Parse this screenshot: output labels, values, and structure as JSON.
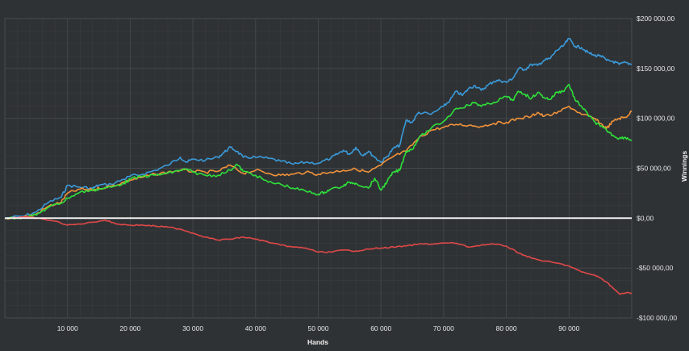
{
  "chart_data": {
    "type": "line",
    "title": "",
    "xlabel": "Hands",
    "ylabel": "Winnings",
    "xlim": [
      0,
      100000
    ],
    "ylim": [
      -100000,
      200000
    ],
    "x_ticks": [
      10000,
      20000,
      30000,
      40000,
      50000,
      60000,
      70000,
      80000,
      90000
    ],
    "x_tick_labels": [
      "10 000",
      "20 000",
      "30 000",
      "40 000",
      "50 000",
      "60 000",
      "70 000",
      "80 000",
      "90 000"
    ],
    "y_ticks": [
      200000,
      150000,
      100000,
      50000,
      0,
      -50000,
      -100000
    ],
    "y_tick_labels": [
      "$200 000,00",
      "$150 000,00",
      "$100 000,00",
      "$50 000,00",
      "$0,00",
      "-$50 000,00",
      "-$100 000,00"
    ],
    "y_axis_side": "right",
    "grid": true,
    "zero_line": true,
    "colors": {
      "background": "#2f3235",
      "grid": "#474b4f",
      "zero_line": "#ffffff",
      "blue": "#3a9ad9",
      "orange": "#f0923a",
      "green": "#2ee03a",
      "red": "#e04848"
    },
    "series": [
      {
        "color": "#3a9ad9",
        "x": [
          0,
          3000,
          5000,
          7000,
          9000,
          10000,
          12000,
          14000,
          15000,
          17000,
          19000,
          20000,
          22000,
          24000,
          26000,
          28000,
          29000,
          30000,
          32000,
          34000,
          35000,
          36000,
          37000,
          38000,
          40000,
          42000,
          44000,
          46000,
          48000,
          50000,
          52000,
          53000,
          54000,
          55000,
          56000,
          57000,
          58000,
          59000,
          60000,
          61000,
          62000,
          63000,
          64000,
          65000,
          66000,
          68000,
          70000,
          71000,
          72000,
          73000,
          74000,
          75000,
          76000,
          77000,
          78000,
          79000,
          80000,
          81000,
          82000,
          83000,
          84000,
          85000,
          86000,
          87000,
          88000,
          89000,
          90000,
          91000,
          92000,
          93000,
          94000,
          95000,
          96000,
          97000,
          98000,
          99000,
          100000
        ],
        "values": [
          0,
          2000,
          6000,
          16000,
          21000,
          33000,
          31000,
          30000,
          33000,
          34000,
          39000,
          42000,
          44000,
          48000,
          53000,
          61000,
          56000,
          59000,
          58000,
          61000,
          66000,
          71000,
          67000,
          61000,
          61000,
          60000,
          57000,
          54000,
          56000,
          55000,
          60000,
          64000,
          68000,
          64000,
          71000,
          63000,
          67000,
          61000,
          56000,
          62000,
          70000,
          73000,
          98000,
          96000,
          106000,
          104000,
          112000,
          118000,
          127000,
          123000,
          130000,
          133000,
          128000,
          133000,
          137000,
          138000,
          136000,
          140000,
          150000,
          149000,
          154000,
          153000,
          158000,
          160000,
          168000,
          172000,
          180000,
          172000,
          171000,
          166000,
          163000,
          163000,
          158000,
          157000,
          154000,
          156000,
          154000
        ]
      },
      {
        "color": "#f0923a",
        "x": [
          0,
          3000,
          5000,
          7000,
          9000,
          10000,
          12000,
          14000,
          15000,
          17000,
          19000,
          20000,
          22000,
          24000,
          26000,
          28000,
          30000,
          32000,
          34000,
          36000,
          38000,
          40000,
          42000,
          44000,
          46000,
          48000,
          50000,
          52000,
          54000,
          56000,
          58000,
          60000,
          62000,
          64000,
          66000,
          68000,
          70000,
          72000,
          74000,
          76000,
          78000,
          80000,
          82000,
          84000,
          85000,
          86000,
          88000,
          90000,
          92000,
          94000,
          95000,
          96000,
          97000,
          98000,
          99000,
          100000
        ],
        "values": [
          0,
          1000,
          4000,
          12000,
          16000,
          25000,
          29000,
          28000,
          30000,
          32000,
          36000,
          38000,
          41000,
          44000,
          46000,
          48000,
          47000,
          46000,
          47000,
          53000,
          45000,
          48000,
          45000,
          43000,
          44000,
          46000,
          44000,
          46000,
          48000,
          49000,
          46000,
          53000,
          62000,
          67000,
          80000,
          88000,
          91000,
          94000,
          93000,
          92000,
          95000,
          96000,
          100000,
          102000,
          106000,
          102000,
          105000,
          112000,
          104000,
          100000,
          95000,
          90000,
          97000,
          100000,
          101000,
          107000
        ]
      },
      {
        "color": "#2ee03a",
        "x": [
          0,
          3000,
          5000,
          7000,
          9000,
          10000,
          12000,
          14000,
          15000,
          17000,
          19000,
          20000,
          22000,
          24000,
          26000,
          28000,
          29000,
          30000,
          32000,
          34000,
          36000,
          37000,
          38000,
          40000,
          42000,
          44000,
          46000,
          48000,
          50000,
          51000,
          52000,
          54000,
          55000,
          56000,
          58000,
          59000,
          60000,
          61000,
          62000,
          63000,
          64000,
          65000,
          66000,
          68000,
          70000,
          72000,
          74000,
          75000,
          76000,
          78000,
          80000,
          81000,
          82000,
          83000,
          84000,
          85000,
          86000,
          87000,
          88000,
          89000,
          90000,
          91000,
          92000,
          93000,
          94000,
          95000,
          96000,
          97000,
          98000,
          99000,
          100000
        ],
        "values": [
          0,
          1000,
          3000,
          11000,
          15000,
          20000,
          26000,
          28000,
          29000,
          31000,
          35000,
          39000,
          42000,
          43000,
          45000,
          48000,
          49000,
          46000,
          43000,
          43000,
          48000,
          54000,
          47000,
          43000,
          36000,
          34000,
          30000,
          27000,
          24000,
          26000,
          29000,
          32000,
          36000,
          35000,
          30000,
          40000,
          28000,
          37000,
          46000,
          48000,
          67000,
          69000,
          80000,
          90000,
          97000,
          110000,
          113000,
          116000,
          112000,
          116000,
          122000,
          118000,
          127000,
          124000,
          120000,
          126000,
          121000,
          119000,
          126000,
          127000,
          134000,
          118000,
          112000,
          104000,
          97000,
          92000,
          88000,
          83000,
          80000,
          81000,
          78000
        ]
      },
      {
        "color": "#e04848",
        "x": [
          0,
          4000,
          6000,
          8000,
          10000,
          12000,
          14000,
          16000,
          18000,
          20000,
          22000,
          24000,
          26000,
          28000,
          30000,
          32000,
          34000,
          36000,
          38000,
          40000,
          42000,
          44000,
          46000,
          48000,
          50000,
          52000,
          54000,
          56000,
          58000,
          60000,
          62000,
          64000,
          66000,
          68000,
          70000,
          72000,
          74000,
          76000,
          78000,
          80000,
          82000,
          84000,
          86000,
          88000,
          90000,
          92000,
          94000,
          95000,
          96000,
          97000,
          98000,
          99000,
          100000
        ],
        "values": [
          0,
          1000,
          -1000,
          -3000,
          -7000,
          -6000,
          -4000,
          -2000,
          -6000,
          -7000,
          -7000,
          -8000,
          -9000,
          -11000,
          -15000,
          -19000,
          -22000,
          -21000,
          -19000,
          -21000,
          -24000,
          -27000,
          -29000,
          -30000,
          -34000,
          -34000,
          -32000,
          -33000,
          -31000,
          -30000,
          -29000,
          -28000,
          -26000,
          -26000,
          -25000,
          -25000,
          -29000,
          -27000,
          -26000,
          -28000,
          -35000,
          -40000,
          -43000,
          -45000,
          -48000,
          -54000,
          -57000,
          -60000,
          -64000,
          -70000,
          -76000,
          -75000,
          -75000
        ]
      }
    ]
  }
}
